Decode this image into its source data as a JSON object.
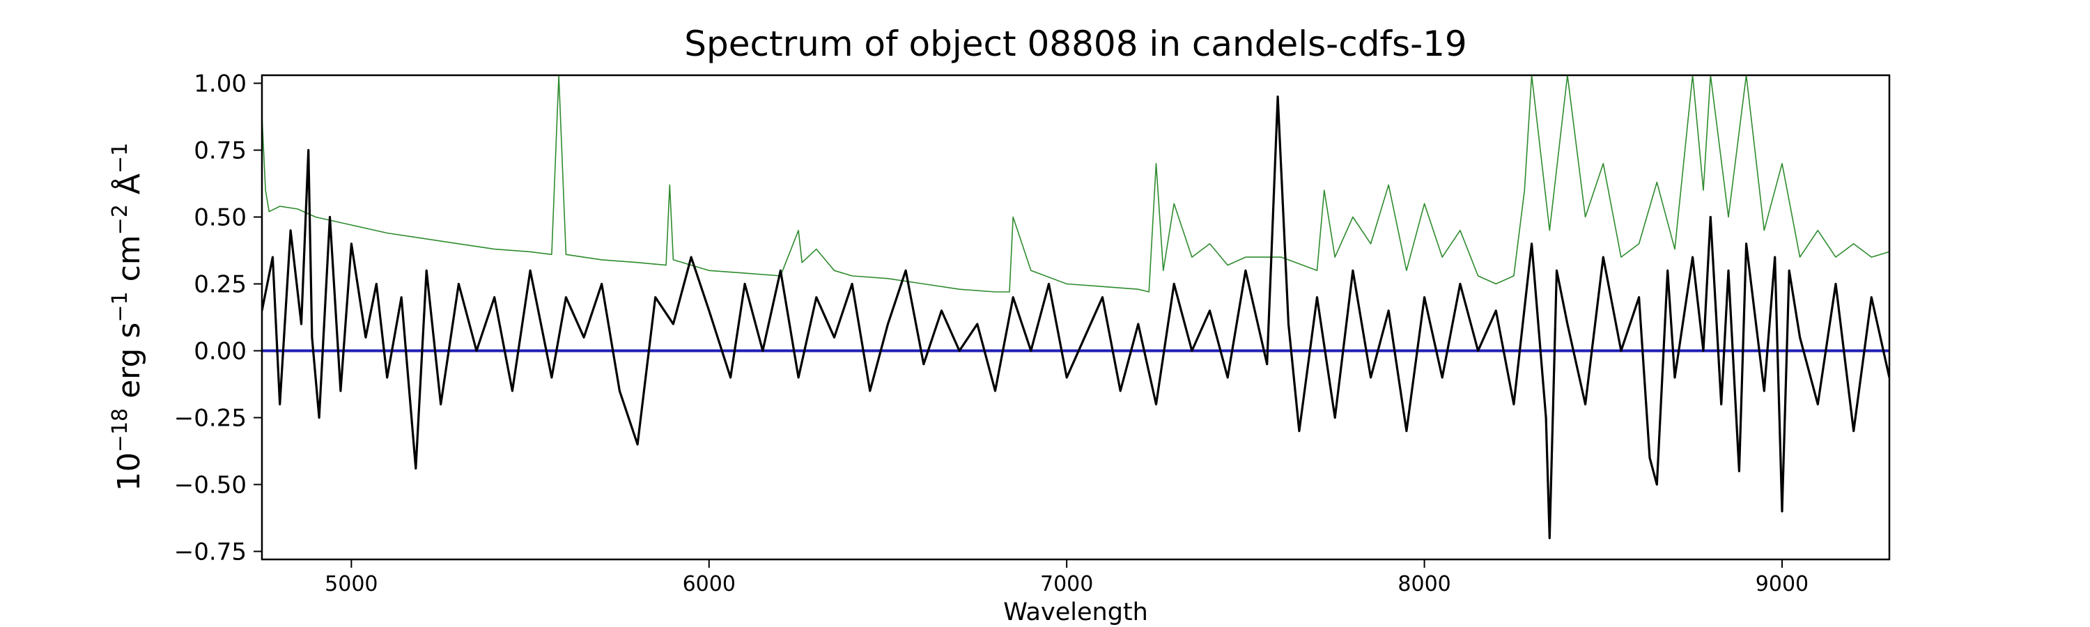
{
  "chart_data": {
    "type": "line",
    "title": "Spectrum of object 08808 in candels-cdfs-19",
    "xlabel": "Wavelength",
    "ylabel": {
      "base": "10",
      "base_exp": "−18",
      "u1": " erg s",
      "u1_exp": "−1",
      "u2": " cm",
      "u2_exp": "−2",
      "u3": " Å",
      "u3_exp": "−1"
    },
    "xlim": [
      4750,
      9300
    ],
    "ylim": [
      -0.78,
      1.03
    ],
    "xticks": [
      5000,
      6000,
      7000,
      8000,
      9000
    ],
    "xtick_labels": [
      "5000",
      "6000",
      "7000",
      "8000",
      "9000"
    ],
    "yticks": [
      -0.75,
      -0.5,
      -0.25,
      0.0,
      0.25,
      0.5,
      0.75,
      1.0
    ],
    "ytick_labels": [
      "−0.75",
      "−0.50",
      "−0.25",
      "0.00",
      "0.25",
      "0.50",
      "0.75",
      "1.00"
    ],
    "grid": false,
    "colors": {
      "flux": "#000000",
      "error": "#2e8b2e",
      "zero": "#1f1fb4"
    },
    "series": [
      {
        "role": "flux",
        "x": [
          4750,
          4780,
          4800,
          4830,
          4860,
          4880,
          4890,
          4910,
          4940,
          4970,
          5000,
          5040,
          5070,
          5100,
          5140,
          5180,
          5210,
          5250,
          5300,
          5350,
          5400,
          5450,
          5500,
          5560,
          5600,
          5650,
          5700,
          5750,
          5800,
          5850,
          5900,
          5950,
          6000,
          6060,
          6100,
          6150,
          6200,
          6250,
          6300,
          6350,
          6400,
          6450,
          6500,
          6550,
          6600,
          6650,
          6700,
          6750,
          6800,
          6850,
          6900,
          6950,
          7000,
          7050,
          7100,
          7150,
          7200,
          7250,
          7300,
          7350,
          7400,
          7450,
          7500,
          7560,
          7590,
          7620,
          7650,
          7700,
          7750,
          7800,
          7850,
          7900,
          7950,
          8000,
          8050,
          8100,
          8150,
          8200,
          8250,
          8300,
          8340,
          8350,
          8370,
          8400,
          8450,
          8500,
          8550,
          8600,
          8630,
          8650,
          8680,
          8700,
          8750,
          8780,
          8800,
          8830,
          8850,
          8880,
          8900,
          8950,
          8980,
          9000,
          9020,
          9050,
          9100,
          9150,
          9200,
          9250,
          9300
        ],
        "y": [
          0.15,
          0.35,
          -0.2,
          0.45,
          0.1,
          0.75,
          0.05,
          -0.25,
          0.5,
          -0.15,
          0.4,
          0.05,
          0.25,
          -0.1,
          0.2,
          -0.44,
          0.3,
          -0.2,
          0.25,
          0.0,
          0.2,
          -0.15,
          0.3,
          -0.1,
          0.2,
          0.05,
          0.25,
          -0.15,
          -0.35,
          0.2,
          0.1,
          0.35,
          0.15,
          -0.1,
          0.25,
          0.0,
          0.3,
          -0.1,
          0.2,
          0.05,
          0.25,
          -0.15,
          0.1,
          0.3,
          -0.05,
          0.15,
          0.0,
          0.1,
          -0.15,
          0.2,
          0.0,
          0.25,
          -0.1,
          0.05,
          0.2,
          -0.15,
          0.1,
          -0.2,
          0.25,
          0.0,
          0.15,
          -0.1,
          0.3,
          -0.05,
          0.95,
          0.1,
          -0.3,
          0.2,
          -0.25,
          0.3,
          -0.1,
          0.15,
          -0.3,
          0.2,
          -0.1,
          0.25,
          0.0,
          0.15,
          -0.2,
          0.4,
          -0.25,
          -0.7,
          0.3,
          0.1,
          -0.2,
          0.35,
          0.0,
          0.2,
          -0.4,
          -0.5,
          0.3,
          -0.1,
          0.35,
          0.0,
          0.5,
          -0.2,
          0.3,
          -0.45,
          0.4,
          -0.15,
          0.35,
          -0.6,
          0.3,
          0.05,
          -0.2,
          0.25,
          -0.3,
          0.2,
          -0.1
        ]
      },
      {
        "role": "error",
        "x": [
          4750,
          4760,
          4770,
          4800,
          4850,
          4900,
          5000,
          5100,
          5200,
          5300,
          5400,
          5500,
          5560,
          5580,
          5600,
          5700,
          5800,
          5880,
          5890,
          5900,
          6000,
          6100,
          6200,
          6250,
          6260,
          6300,
          6350,
          6400,
          6500,
          6600,
          6700,
          6800,
          6840,
          6850,
          6900,
          7000,
          7100,
          7200,
          7230,
          7250,
          7270,
          7300,
          7350,
          7400,
          7450,
          7500,
          7600,
          7700,
          7720,
          7750,
          7800,
          7850,
          7900,
          7950,
          8000,
          8050,
          8100,
          8150,
          8200,
          8250,
          8280,
          8300,
          8350,
          8400,
          8450,
          8500,
          8550,
          8600,
          8650,
          8700,
          8750,
          8780,
          8800,
          8850,
          8900,
          8950,
          9000,
          9050,
          9100,
          9150,
          9200,
          9250,
          9300
        ],
        "y": [
          0.88,
          0.6,
          0.52,
          0.54,
          0.53,
          0.5,
          0.47,
          0.44,
          0.42,
          0.4,
          0.38,
          0.37,
          0.36,
          1.03,
          0.36,
          0.34,
          0.33,
          0.32,
          0.62,
          0.34,
          0.3,
          0.29,
          0.28,
          0.45,
          0.33,
          0.38,
          0.3,
          0.28,
          0.27,
          0.25,
          0.23,
          0.22,
          0.22,
          0.5,
          0.3,
          0.25,
          0.24,
          0.23,
          0.22,
          0.7,
          0.3,
          0.55,
          0.35,
          0.4,
          0.32,
          0.35,
          0.35,
          0.3,
          0.6,
          0.35,
          0.5,
          0.4,
          0.62,
          0.3,
          0.55,
          0.35,
          0.45,
          0.28,
          0.25,
          0.28,
          0.6,
          1.03,
          0.45,
          1.03,
          0.5,
          0.7,
          0.35,
          0.4,
          0.63,
          0.38,
          1.03,
          0.6,
          1.03,
          0.5,
          1.03,
          0.45,
          0.7,
          0.35,
          0.45,
          0.35,
          0.4,
          0.35,
          0.37
        ]
      },
      {
        "role": "zero",
        "x": [
          4750,
          9300
        ],
        "y": [
          0,
          0
        ]
      }
    ]
  }
}
